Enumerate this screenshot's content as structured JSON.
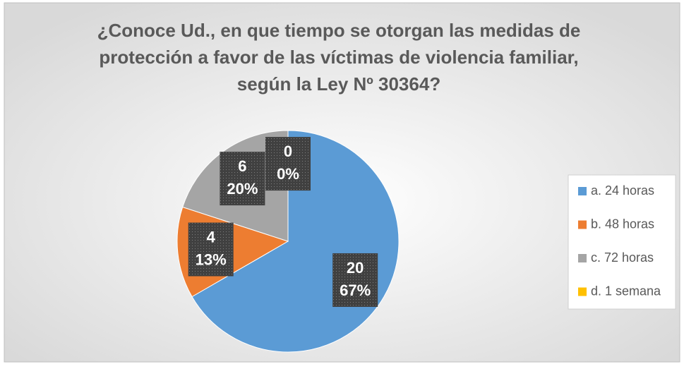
{
  "chart_data": {
    "type": "pie",
    "title": [
      "¿Conoce Ud., en que tiempo se otorgan las medidas de",
      "protección a favor de las víctimas de violencia familiar,",
      "según la Ley Nº 30364?"
    ],
    "categories": [
      "a. 24 horas",
      "b. 48 horas",
      "c. 72 horas",
      "d. 1 semana"
    ],
    "values": [
      20,
      4,
      6,
      0
    ],
    "percent_labels": [
      "67%",
      "13%",
      "20%",
      "0%"
    ],
    "colors": [
      "#5b9bd5",
      "#ed7d31",
      "#a5a5a5",
      "#ffc000"
    ],
    "legend": "right"
  }
}
